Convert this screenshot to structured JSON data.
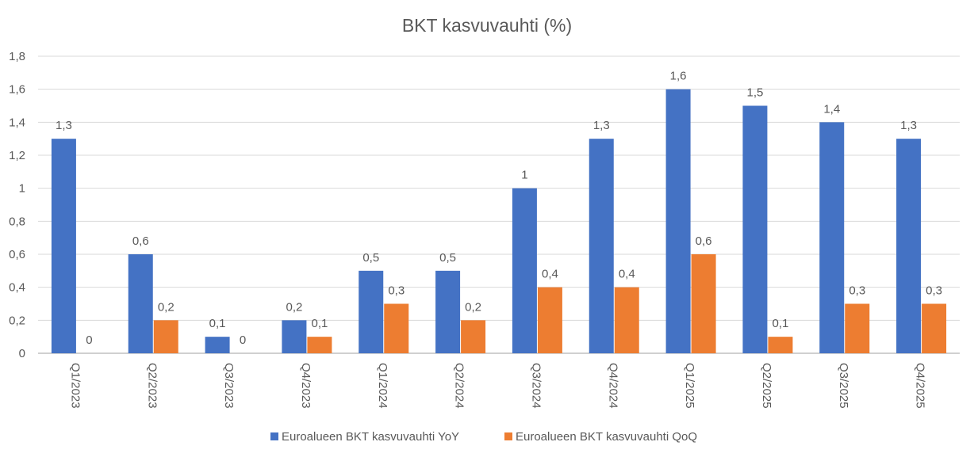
{
  "chart_data": {
    "type": "bar",
    "title": "BKT kasvuvauhti (%)",
    "xlabel": "",
    "ylabel": "",
    "ylim": [
      0,
      1.8
    ],
    "yticks": [
      "0",
      "0,2",
      "0,4",
      "0,6",
      "0,8",
      "1",
      "1,2",
      "1,4",
      "1,6",
      "1,8"
    ],
    "grid": true,
    "legend_position": "bottom",
    "categories": [
      "Q1/2023",
      "Q2/2023",
      "Q3/2023",
      "Q4/2023",
      "Q1/2024",
      "Q2/2024",
      "Q3/2024",
      "Q4/2024",
      "Q1/2025",
      "Q2/2025",
      "Q3/2025",
      "Q4/2025"
    ],
    "series": [
      {
        "name": "Euroalueen BKT kasvuvauhti YoY",
        "color": "#4472C4",
        "values": [
          1.3,
          0.6,
          0.1,
          0.2,
          0.5,
          0.5,
          1.0,
          1.3,
          1.6,
          1.5,
          1.4,
          1.3
        ]
      },
      {
        "name": "Euroalueen BKT kasvuvauhti QoQ",
        "color": "#ED7D31",
        "values": [
          0,
          0.2,
          0,
          0.1,
          0.3,
          0.2,
          0.4,
          0.4,
          0.6,
          0.1,
          0.3,
          0.3
        ]
      }
    ]
  }
}
